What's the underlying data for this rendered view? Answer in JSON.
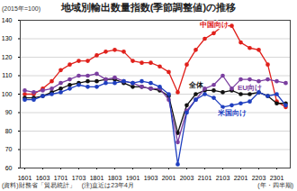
{
  "chart_data": {
    "type": "line",
    "title": "地域別輸出数量指数(季節調整値)の推移",
    "y_label": "(2015年=100)",
    "x_label": "(年・四半期)",
    "source": "(資料)財務省「貿易統計」",
    "note": "(注)直近は23年4月",
    "categories": [
      "1601",
      null,
      "1603",
      null,
      "1701",
      null,
      "1703",
      null,
      "1801",
      null,
      "1803",
      null,
      "1901",
      null,
      "1903",
      null,
      "2001",
      null,
      "2003",
      null,
      "2101",
      null,
      "2103",
      null,
      "2201",
      null,
      "2203",
      null,
      "2301",
      null
    ],
    "series": [
      {
        "name": "中国向け",
        "color": "#e0201b",
        "values": [
          100,
          100,
          103,
          107,
          113,
          116,
          118,
          118,
          121,
          123,
          124,
          123,
          118,
          117,
          117,
          115,
          112,
          101,
          116,
          124,
          130,
          133,
          137,
          137,
          128,
          125,
          124,
          116,
          96,
          93
        ]
      },
      {
        "name": "全体",
        "color": "#111111",
        "values": [
          98,
          98,
          99,
          101,
          103,
          105,
          106,
          107,
          107,
          108,
          108,
          106,
          104,
          104,
          103,
          102,
          99,
          79,
          94,
          100,
          102,
          102,
          101,
          102,
          100,
          100,
          101,
          99,
          95,
          95
        ]
      },
      {
        "name": "EU向け",
        "color": "#7b3fa0",
        "values": [
          102,
          101,
          102,
          103,
          106,
          108,
          110,
          110,
          111,
          108,
          109,
          107,
          106,
          104,
          103,
          103,
          97,
          74,
          91,
          97,
          103,
          105,
          110,
          103,
          108,
          108,
          107,
          108,
          107,
          106
        ]
      },
      {
        "name": "米国向け",
        "color": "#1f3fbf",
        "values": [
          97,
          97,
          99,
          100,
          101,
          103,
          105,
          104,
          104,
          106,
          106,
          107,
          106,
          107,
          106,
          104,
          100,
          62,
          90,
          97,
          100,
          98,
          93,
          94,
          95,
          96,
          101,
          99,
          100,
          94
        ]
      }
    ],
    "ylim": [
      60,
      140
    ],
    "yticks": [
      60,
      70,
      80,
      90,
      100,
      110,
      120,
      130,
      140
    ],
    "grid": true,
    "marker": "circle"
  }
}
